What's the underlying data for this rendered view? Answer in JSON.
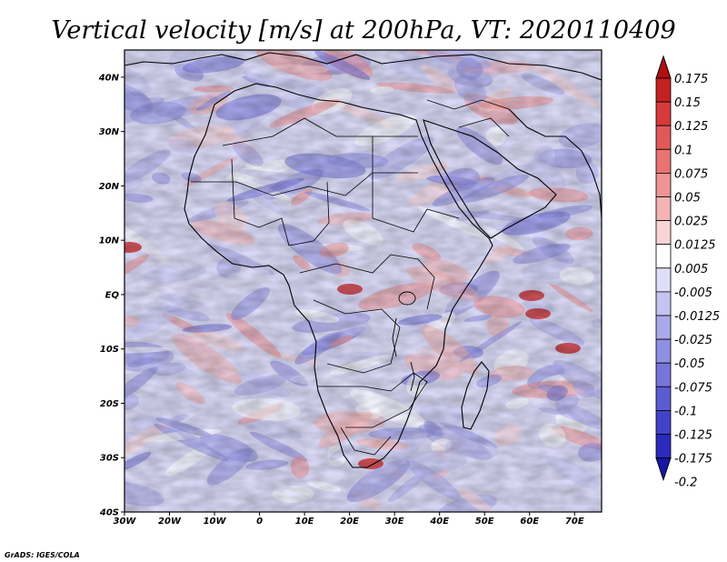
{
  "chart_data": {
    "type": "heatmap",
    "title": "Vertical velocity [m/s] at 200hPa, VT: 2020110409",
    "variable": "Vertical velocity",
    "units": "m/s",
    "level": "200hPa",
    "valid_time": "2020110409",
    "x_range": [
      -30,
      76
    ],
    "y_range": [
      -40,
      45
    ],
    "x_ticks": [
      {
        "value": -30,
        "label": "30W"
      },
      {
        "value": -20,
        "label": "20W"
      },
      {
        "value": -10,
        "label": "10W"
      },
      {
        "value": 0,
        "label": "0"
      },
      {
        "value": 10,
        "label": "10E"
      },
      {
        "value": 20,
        "label": "20E"
      },
      {
        "value": 30,
        "label": "30E"
      },
      {
        "value": 40,
        "label": "40E"
      },
      {
        "value": 50,
        "label": "50E"
      },
      {
        "value": 60,
        "label": "60E"
      },
      {
        "value": 70,
        "label": "70E"
      }
    ],
    "y_ticks": [
      {
        "value": 40,
        "label": "40N"
      },
      {
        "value": 30,
        "label": "30N"
      },
      {
        "value": 20,
        "label": "20N"
      },
      {
        "value": 10,
        "label": "10N"
      },
      {
        "value": 0,
        "label": "EQ"
      },
      {
        "value": -10,
        "label": "10S"
      },
      {
        "value": -20,
        "label": "20S"
      },
      {
        "value": -30,
        "label": "30S"
      },
      {
        "value": -40,
        "label": "40S"
      }
    ],
    "colorbar": {
      "levels": [
        "0.175",
        "0.15",
        "0.125",
        "0.1",
        "0.075",
        "0.05",
        "0.025",
        "0.0125",
        "0.005",
        "-0.005",
        "-0.0125",
        "-0.025",
        "-0.05",
        "-0.075",
        "-0.1",
        "-0.125",
        "-0.175",
        "-0.2"
      ],
      "colors": [
        "#b01010",
        "#c42222",
        "#d63a3a",
        "#e05858",
        "#e87474",
        "#ee9494",
        "#f4b4b4",
        "#f9d4d4",
        "#ffffff",
        "#dedef8",
        "#c4c4f2",
        "#aaaaea",
        "#9090e2",
        "#7676da",
        "#5c5cd2",
        "#4242c8",
        "#2a2abc",
        "#1616a6"
      ]
    }
  },
  "credit": "GrADS: IGES/COLA"
}
